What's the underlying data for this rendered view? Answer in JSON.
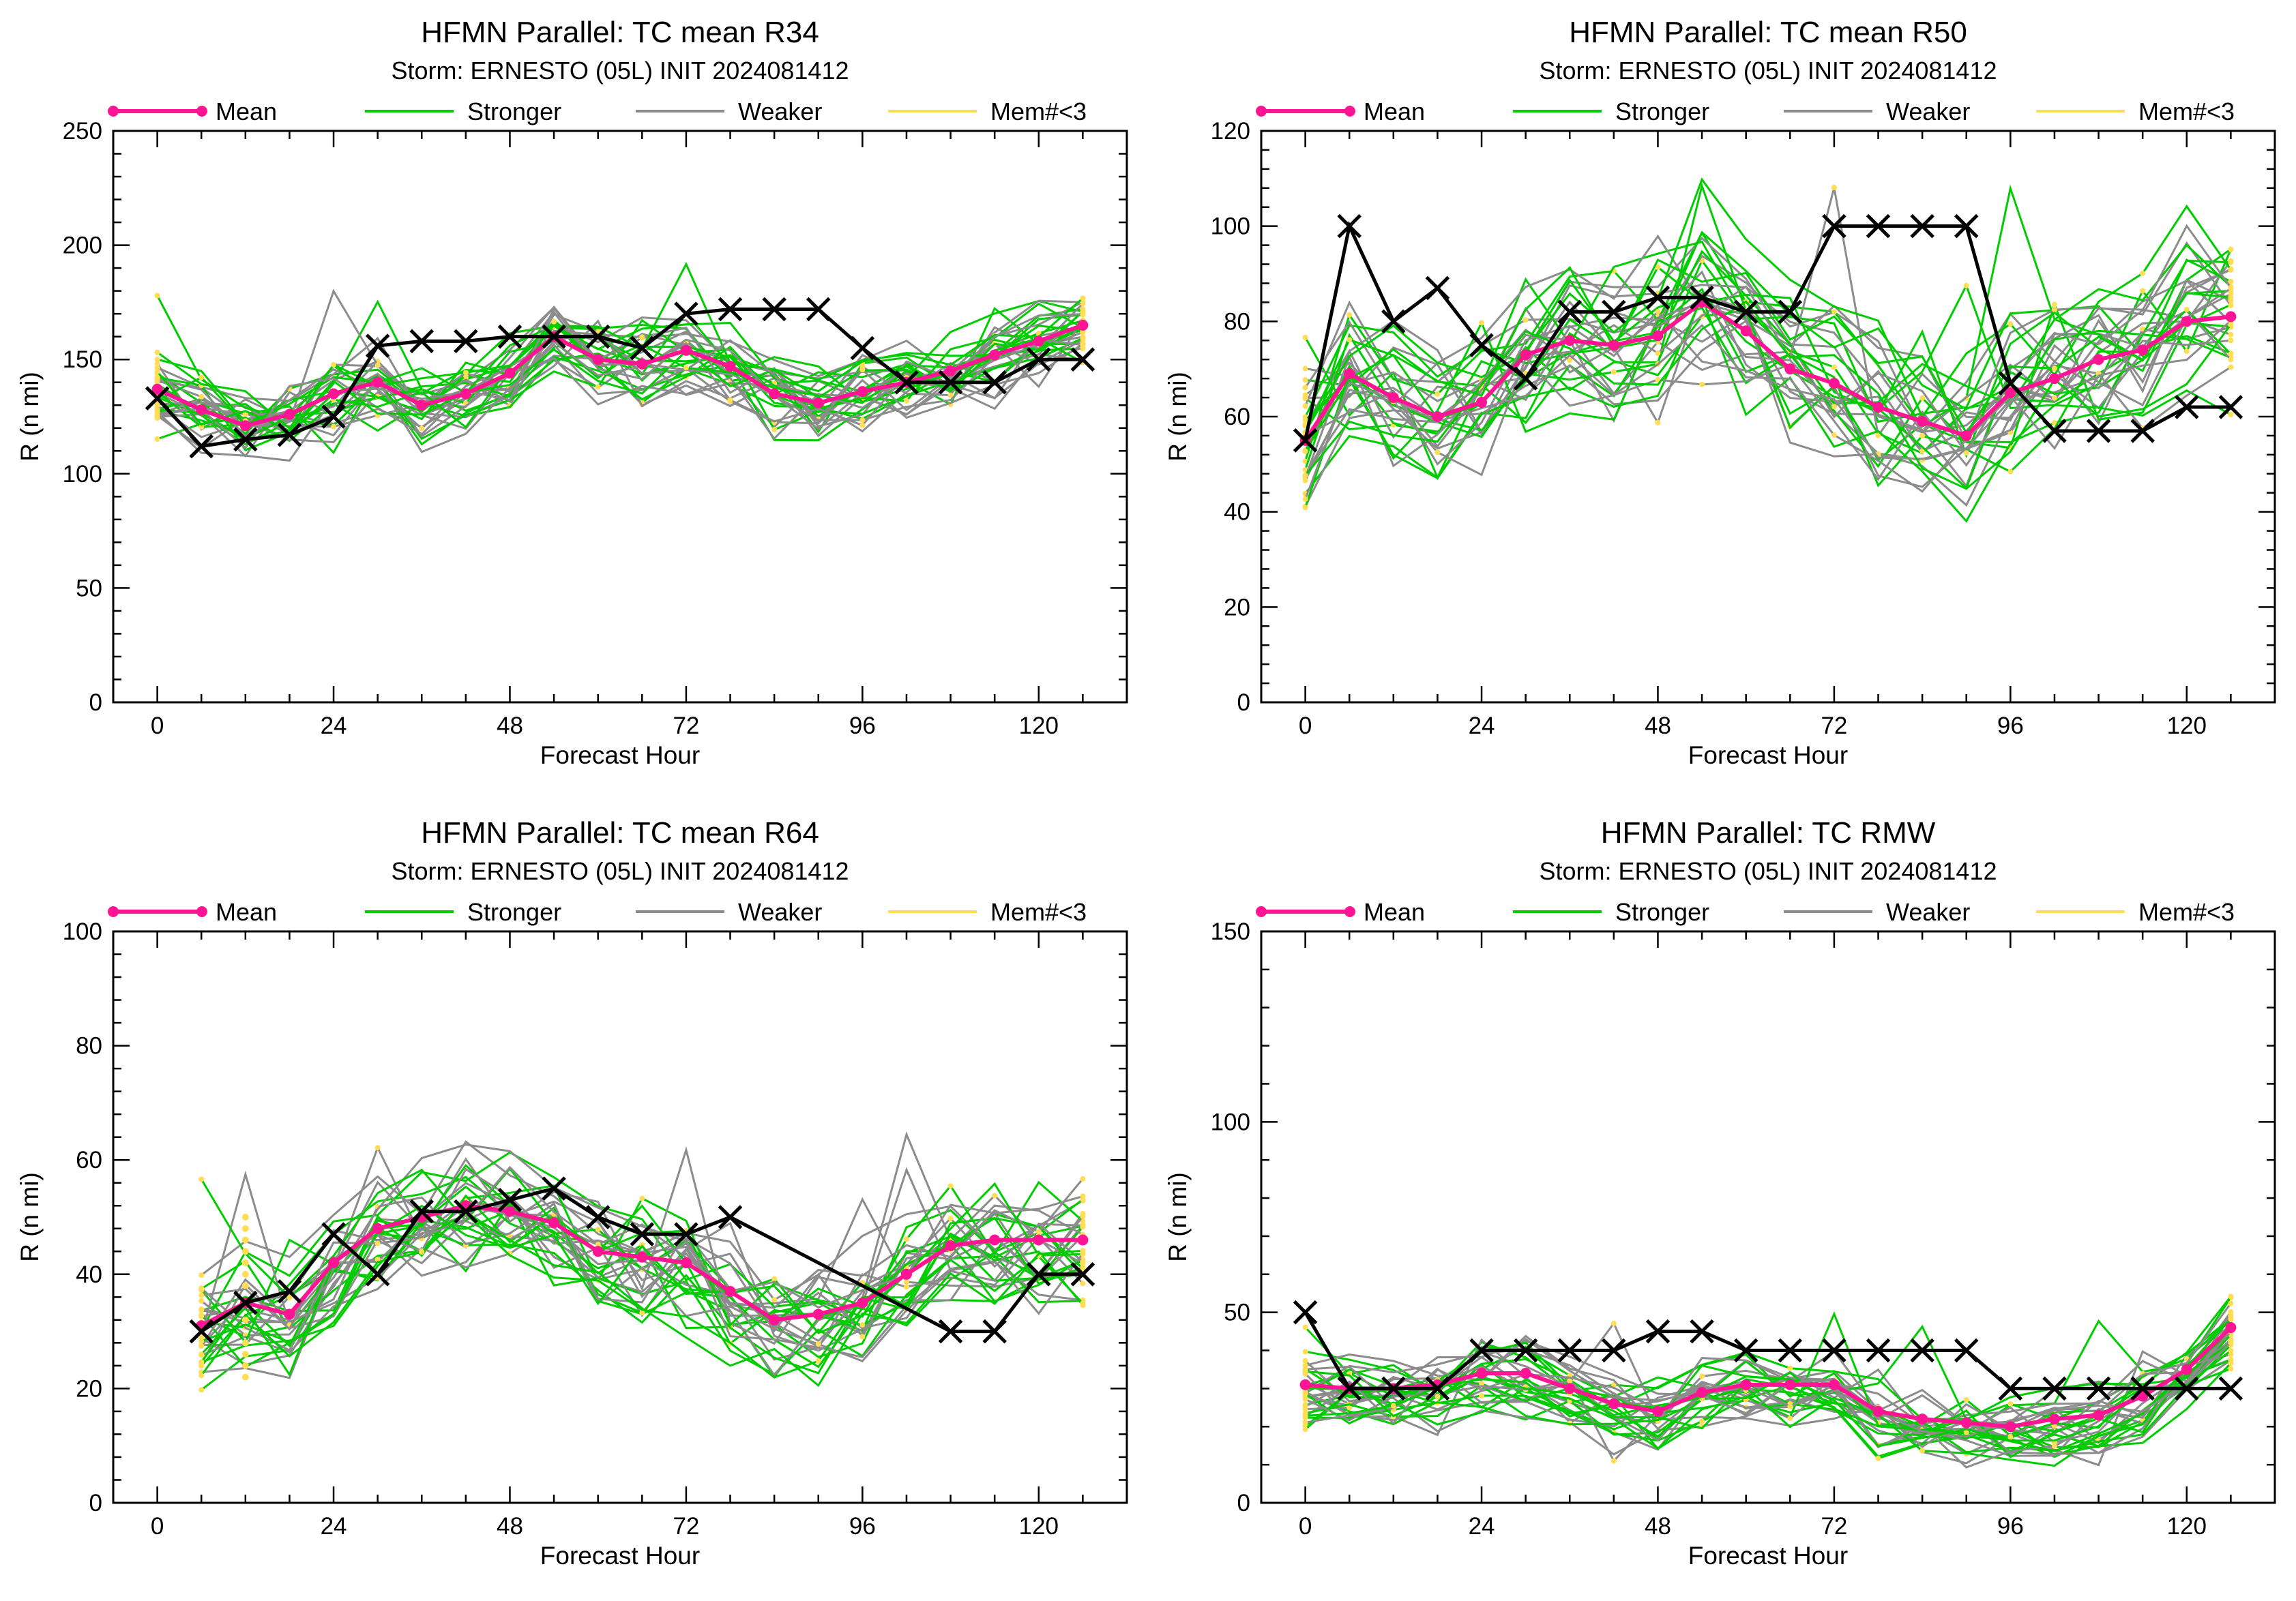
{
  "colors": {
    "mean": "#ff1493",
    "stronger": "#00cc00",
    "weaker": "#8c8c8c",
    "members_lt3": "#ffdd55",
    "best_track": "#000000"
  },
  "legend": {
    "mean": "Mean",
    "stronger": "Stronger",
    "weaker": "Weaker",
    "members_lt3": "Mem#<3"
  },
  "chart_data": [
    {
      "type": "line",
      "title": "HFMN Parallel: TC mean R34",
      "subtitle": "Storm: ERNESTO (05L) INIT 2024081412",
      "xlabel": "Forecast Hour",
      "ylabel": "R (n mi)",
      "xlim": [
        -6,
        132
      ],
      "ylim": [
        0,
        250
      ],
      "xticks": [
        0,
        24,
        48,
        72,
        96,
        120
      ],
      "yticks": [
        0,
        50,
        100,
        150,
        200,
        250
      ],
      "legend_placement": "top",
      "grid": false,
      "mean": {
        "x": [
          0,
          6,
          12,
          18,
          24,
          30,
          36,
          42,
          48,
          54,
          60,
          66,
          72,
          78,
          84,
          90,
          96,
          102,
          108,
          114,
          120,
          126
        ],
        "y": [
          137,
          128,
          121,
          126,
          135,
          140,
          130,
          135,
          144,
          160,
          150,
          148,
          154,
          147,
          135,
          131,
          136,
          140,
          145,
          152,
          158,
          165
        ]
      },
      "best_track": {
        "x": [
          0,
          6,
          12,
          18,
          24,
          30,
          36,
          42,
          48,
          54,
          60,
          66,
          72,
          78,
          84,
          90,
          96,
          102,
          108,
          114,
          120,
          126
        ],
        "y": [
          133,
          112,
          115,
          117,
          125,
          156,
          158,
          158,
          160,
          160,
          160,
          155,
          170,
          172,
          172,
          172,
          155,
          140,
          140,
          140,
          150,
          150
        ]
      },
      "members": {
        "count": 30,
        "spread": 16,
        "bias": 0,
        "seed": 11,
        "x": [
          0,
          6,
          12,
          18,
          24,
          30,
          36,
          42,
          48,
          54,
          60,
          66,
          72,
          78,
          84,
          90,
          96,
          102,
          108,
          114,
          120,
          126
        ]
      }
    },
    {
      "type": "line",
      "title": "HFMN Parallel: TC mean R50",
      "subtitle": "Storm: ERNESTO (05L) INIT 2024081412",
      "xlabel": "Forecast Hour",
      "ylabel": "R (n mi)",
      "xlim": [
        -6,
        132
      ],
      "ylim": [
        0,
        120
      ],
      "xticks": [
        0,
        24,
        48,
        72,
        96,
        120
      ],
      "yticks": [
        0,
        20,
        40,
        60,
        80,
        100,
        120
      ],
      "legend_placement": "top",
      "grid": false,
      "mean": {
        "x": [
          0,
          6,
          12,
          18,
          24,
          30,
          36,
          42,
          48,
          54,
          60,
          66,
          72,
          78,
          84,
          90,
          96,
          102,
          108,
          114,
          120,
          126
        ],
        "y": [
          55,
          69,
          64,
          60,
          63,
          73,
          76,
          75,
          77,
          84,
          78,
          70,
          67,
          62,
          59,
          56,
          65,
          68,
          72,
          74,
          80,
          81
        ]
      },
      "best_track": {
        "x": [
          0,
          6,
          12,
          18,
          24,
          30,
          36,
          42,
          48,
          54,
          60,
          66,
          72,
          78,
          84,
          90,
          96,
          102,
          108,
          114,
          120,
          126
        ],
        "y": [
          55,
          100,
          80,
          87,
          75,
          68,
          82,
          82,
          85,
          85,
          82,
          82,
          100,
          100,
          100,
          100,
          67,
          57,
          57,
          57,
          62,
          62
        ]
      },
      "members": {
        "count": 30,
        "spread": 13,
        "bias": 0,
        "seed": 23,
        "x": [
          0,
          6,
          12,
          18,
          24,
          30,
          36,
          42,
          48,
          54,
          60,
          66,
          72,
          78,
          84,
          90,
          96,
          102,
          108,
          114,
          120,
          126
        ]
      }
    },
    {
      "type": "line",
      "title": "HFMN Parallel: TC mean R64",
      "subtitle": "Storm: ERNESTO (05L) INIT 2024081412",
      "xlabel": "Forecast Hour",
      "ylabel": "R (n mi)",
      "xlim": [
        -6,
        132
      ],
      "ylim": [
        0,
        100
      ],
      "xticks": [
        0,
        24,
        48,
        72,
        96,
        120
      ],
      "yticks": [
        0,
        20,
        40,
        60,
        80,
        100
      ],
      "legend_placement": "top",
      "grid": false,
      "mean": {
        "x": [
          6,
          12,
          18,
          24,
          30,
          36,
          42,
          48,
          54,
          60,
          66,
          72,
          78,
          84,
          90,
          96,
          102,
          108,
          114,
          120,
          126
        ],
        "y": [
          31,
          35,
          33,
          42,
          48,
          50,
          52,
          51,
          49,
          44,
          43,
          42,
          37,
          32,
          33,
          35,
          40,
          45,
          46,
          46,
          46
        ]
      },
      "best_track": {
        "x": [
          6,
          12,
          18,
          24,
          30,
          36,
          42,
          48,
          54,
          60,
          66,
          72,
          78,
          108,
          114,
          120,
          126
        ],
        "y": [
          30,
          35,
          37,
          47,
          40,
          51,
          51,
          53,
          55,
          50,
          47,
          47,
          50,
          30,
          30,
          40,
          40
        ]
      },
      "members": {
        "count": 30,
        "spread": 9,
        "bias": -1,
        "seed": 37,
        "x": [
          6,
          12,
          18,
          24,
          30,
          36,
          42,
          48,
          54,
          60,
          66,
          72,
          78,
          84,
          90,
          96,
          102,
          108,
          114,
          120,
          126
        ]
      },
      "isolated_members_lt3": {
        "x": [
          12,
          12,
          12,
          12,
          12,
          12,
          12,
          12,
          12,
          12,
          12,
          12
        ],
        "y": [
          22,
          24,
          26,
          28,
          32,
          38,
          40,
          42,
          44,
          46,
          48,
          50
        ]
      }
    },
    {
      "type": "line",
      "title": "HFMN Parallel: TC RMW",
      "subtitle": "Storm: ERNESTO (05L) INIT 2024081412",
      "xlabel": "Forecast Hour",
      "ylabel": "R (n mi)",
      "xlim": [
        -6,
        132
      ],
      "ylim": [
        0,
        150
      ],
      "xticks": [
        0,
        24,
        48,
        72,
        96,
        120
      ],
      "yticks": [
        0,
        50,
        100,
        150
      ],
      "legend_placement": "top",
      "grid": false,
      "mean": {
        "x": [
          0,
          6,
          12,
          18,
          24,
          30,
          36,
          42,
          48,
          54,
          60,
          66,
          72,
          78,
          84,
          90,
          96,
          102,
          108,
          114,
          120,
          126
        ],
        "y": [
          31,
          30,
          30,
          31,
          34,
          34,
          30,
          26,
          24,
          29,
          31,
          31,
          31,
          24,
          22,
          21,
          20,
          22,
          23,
          28,
          35,
          46
        ]
      },
      "best_track": {
        "x": [
          0,
          6,
          12,
          18,
          24,
          30,
          36,
          42,
          48,
          54,
          60,
          66,
          72,
          78,
          84,
          90,
          96,
          102,
          108,
          114,
          120,
          126
        ],
        "y": [
          50,
          30,
          30,
          30,
          40,
          40,
          40,
          40,
          45,
          45,
          40,
          40,
          40,
          40,
          40,
          40,
          30,
          30,
          30,
          30,
          30,
          30
        ]
      },
      "members": {
        "count": 30,
        "spread": 8,
        "bias": -2,
        "seed": 51,
        "x": [
          0,
          6,
          12,
          18,
          24,
          30,
          36,
          42,
          48,
          54,
          60,
          66,
          72,
          78,
          84,
          90,
          96,
          102,
          108,
          114,
          120,
          126
        ]
      }
    }
  ]
}
